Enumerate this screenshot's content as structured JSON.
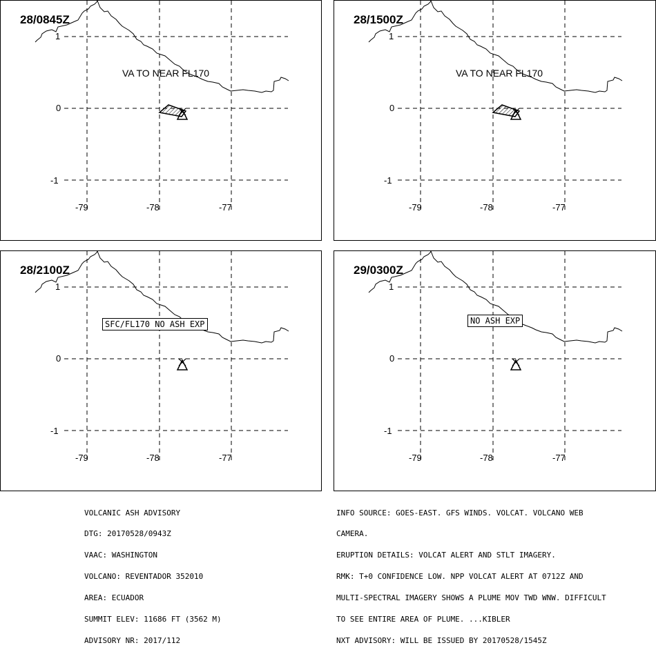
{
  "panels": [
    {
      "title": "28/0845Z",
      "label": "VA TO NEAR FL170",
      "label_style": "plain",
      "plume": "large"
    },
    {
      "title": "28/1500Z",
      "label": "VA TO NEAR FL170",
      "label_style": "plain",
      "plume": "large"
    },
    {
      "title": "28/2100Z",
      "label": "SFC/FL170 NO ASH EXP",
      "label_style": "box",
      "plume": "none"
    },
    {
      "title": "29/0300Z",
      "label": "NO ASH EXP",
      "label_style": "box",
      "plume": "none"
    }
  ],
  "axes": {
    "lat_ticks": [
      "1",
      "0",
      "-1"
    ],
    "lon_ticks": [
      "-79",
      "-78",
      "-77"
    ]
  },
  "advisory_left": [
    "VOLCANIC ASH ADVISORY",
    "DTG: 20170528/0943Z",
    "VAAC: WASHINGTON",
    "VOLCANO: REVENTADOR 352010",
    "AREA: ECUADOR",
    "SUMMIT ELEV: 11686 FT (3562 M)",
    "ADVISORY NR: 2017/112"
  ],
  "advisory_right": [
    "INFO SOURCE: GOES-EAST. GFS WINDS. VOLCAT. VOLCANO WEB",
    "CAMERA.",
    "ERUPTION DETAILS: VOLCAT ALERT AND STLT IMAGERY.",
    "RMK: T+0 CONFIDENCE LOW. NPP VOLCAT ALERT AT 0712Z AND",
    "MULTI-SPECTRAL IMAGERY SHOWS A PLUME MOV TWD WNW. DIFFICULT",
    "TO SEE ENTIRE AREA OF PLUME. ...KIBLER",
    "NXT ADVISORY: WILL BE ISSUED BY 20170528/1545Z"
  ]
}
